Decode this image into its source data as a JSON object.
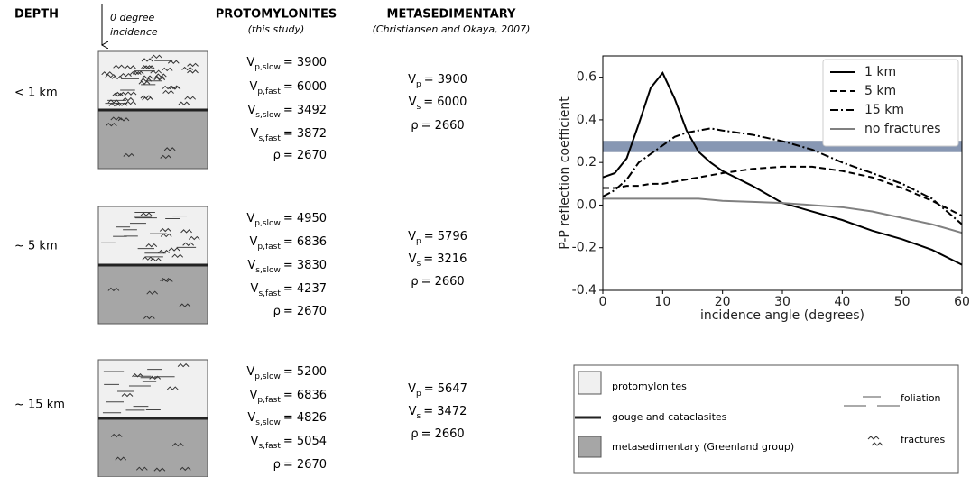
{
  "header": {
    "depth": "DEPTH",
    "incidence": [
      "0 degree",
      "incidence"
    ],
    "proto": "PROTOMYLONITES",
    "proto_sub": "(this study)",
    "meta": "METASEDIMENTARY",
    "meta_sub": "(Christiansen and Okaya, 2007)"
  },
  "rows": [
    {
      "depth": "< 1 km",
      "proto": [
        {
          "symbol": "V",
          "sub": "p,slow",
          "value": "= 3900"
        },
        {
          "symbol": "V",
          "sub": "p,fast",
          "value": "= 6000"
        },
        {
          "symbol": "V",
          "sub": "s,slow",
          "value": "= 3492"
        },
        {
          "symbol": "V",
          "sub": "s,fast",
          "value": "= 3872"
        },
        {
          "symbol": "ρ",
          "value": "= 2670"
        }
      ],
      "meta": [
        {
          "symbol": "V",
          "sub": "p",
          "value": "= 3900"
        },
        {
          "symbol": "V",
          "sub": "s",
          "value": "= 6000"
        },
        {
          "symbol": "ρ",
          "value": "= 2660"
        }
      ]
    },
    {
      "depth": "~ 5 km",
      "proto": [
        {
          "symbol": "V",
          "sub": "p,slow",
          "value": "= 4950"
        },
        {
          "symbol": "V",
          "sub": "p,fast",
          "value": "= 6836"
        },
        {
          "symbol": "V",
          "sub": "s,slow",
          "value": "= 3830"
        },
        {
          "symbol": "V",
          "sub": "s,fast",
          "value": "= 4237"
        },
        {
          "symbol": "ρ",
          "value": "= 2670"
        }
      ],
      "meta": [
        {
          "symbol": "V",
          "sub": "p",
          "value": "= 5796"
        },
        {
          "symbol": "V",
          "sub": "s",
          "value": "= 3216"
        },
        {
          "symbol": "ρ",
          "value": "= 2660"
        }
      ]
    },
    {
      "depth": "~ 15 km",
      "proto": [
        {
          "symbol": "V",
          "sub": "p,slow",
          "value": "= 5200"
        },
        {
          "symbol": "V",
          "sub": "p,fast",
          "value": "= 6836"
        },
        {
          "symbol": "V",
          "sub": "s,slow",
          "value": "= 4826"
        },
        {
          "symbol": "V",
          "sub": "s,fast",
          "value": "= 5054"
        },
        {
          "symbol": "ρ",
          "value": "= 2670"
        }
      ],
      "meta": [
        {
          "symbol": "V",
          "sub": "p",
          "value": "= 5647"
        },
        {
          "symbol": "V",
          "sub": "s",
          "value": "= 3472"
        },
        {
          "symbol": "ρ",
          "value": "= 2660"
        }
      ]
    }
  ],
  "key": {
    "protomylonites": "protomylonites",
    "gouge": "gouge and cataclasites",
    "metasedimentary": "metasedimentary (Greenland group)",
    "foliation": "foliation",
    "fractures": "fractures"
  },
  "chart_data": {
    "type": "line",
    "xlabel": "incidence angle (degrees)",
    "ylabel": "P-P reflection coefficient",
    "x": [
      0,
      2,
      4,
      6,
      8,
      10,
      12,
      14,
      16,
      18,
      20,
      25,
      30,
      35,
      40,
      45,
      50,
      55,
      60
    ],
    "series": [
      {
        "name": "1 km",
        "color": "#000000",
        "dash": "solid",
        "values": [
          0.13,
          0.15,
          0.22,
          0.38,
          0.55,
          0.62,
          0.5,
          0.35,
          0.25,
          0.2,
          0.16,
          0.09,
          0.01,
          -0.03,
          -0.07,
          -0.12,
          -0.16,
          -0.21,
          -0.28
        ]
      },
      {
        "name": "5 km",
        "color": "#000000",
        "dash": "dashed",
        "values": [
          0.08,
          0.08,
          0.09,
          0.09,
          0.1,
          0.1,
          0.11,
          0.12,
          0.13,
          0.14,
          0.15,
          0.17,
          0.18,
          0.18,
          0.16,
          0.13,
          0.08,
          0.02,
          -0.05
        ]
      },
      {
        "name": "15 km",
        "color": "#000000",
        "dash": "dashdot",
        "values": [
          0.04,
          0.07,
          0.12,
          0.2,
          0.24,
          0.28,
          0.32,
          0.34,
          0.35,
          0.36,
          0.35,
          0.33,
          0.3,
          0.26,
          0.2,
          0.15,
          0.1,
          0.03,
          -0.09
        ]
      },
      {
        "name": "no fractures",
        "color": "#808080",
        "dash": "solid",
        "values": [
          0.03,
          0.03,
          0.03,
          0.03,
          0.03,
          0.03,
          0.03,
          0.03,
          0.03,
          0.025,
          0.02,
          0.015,
          0.01,
          0.0,
          -0.01,
          -0.03,
          -0.06,
          -0.09,
          -0.13
        ]
      }
    ],
    "band": [
      0.25,
      0.3
    ],
    "band_color": "#8797b3",
    "xlim": [
      0,
      60
    ],
    "xticks": [
      0,
      10,
      20,
      30,
      40,
      50,
      60
    ],
    "ylim": [
      -0.4,
      0.7
    ],
    "yticks": [
      -0.4,
      -0.2,
      {
        "value": 0,
        "label": "0.0"
      },
      0.2,
      0.4,
      0.6
    ],
    "legend": "upper right"
  }
}
